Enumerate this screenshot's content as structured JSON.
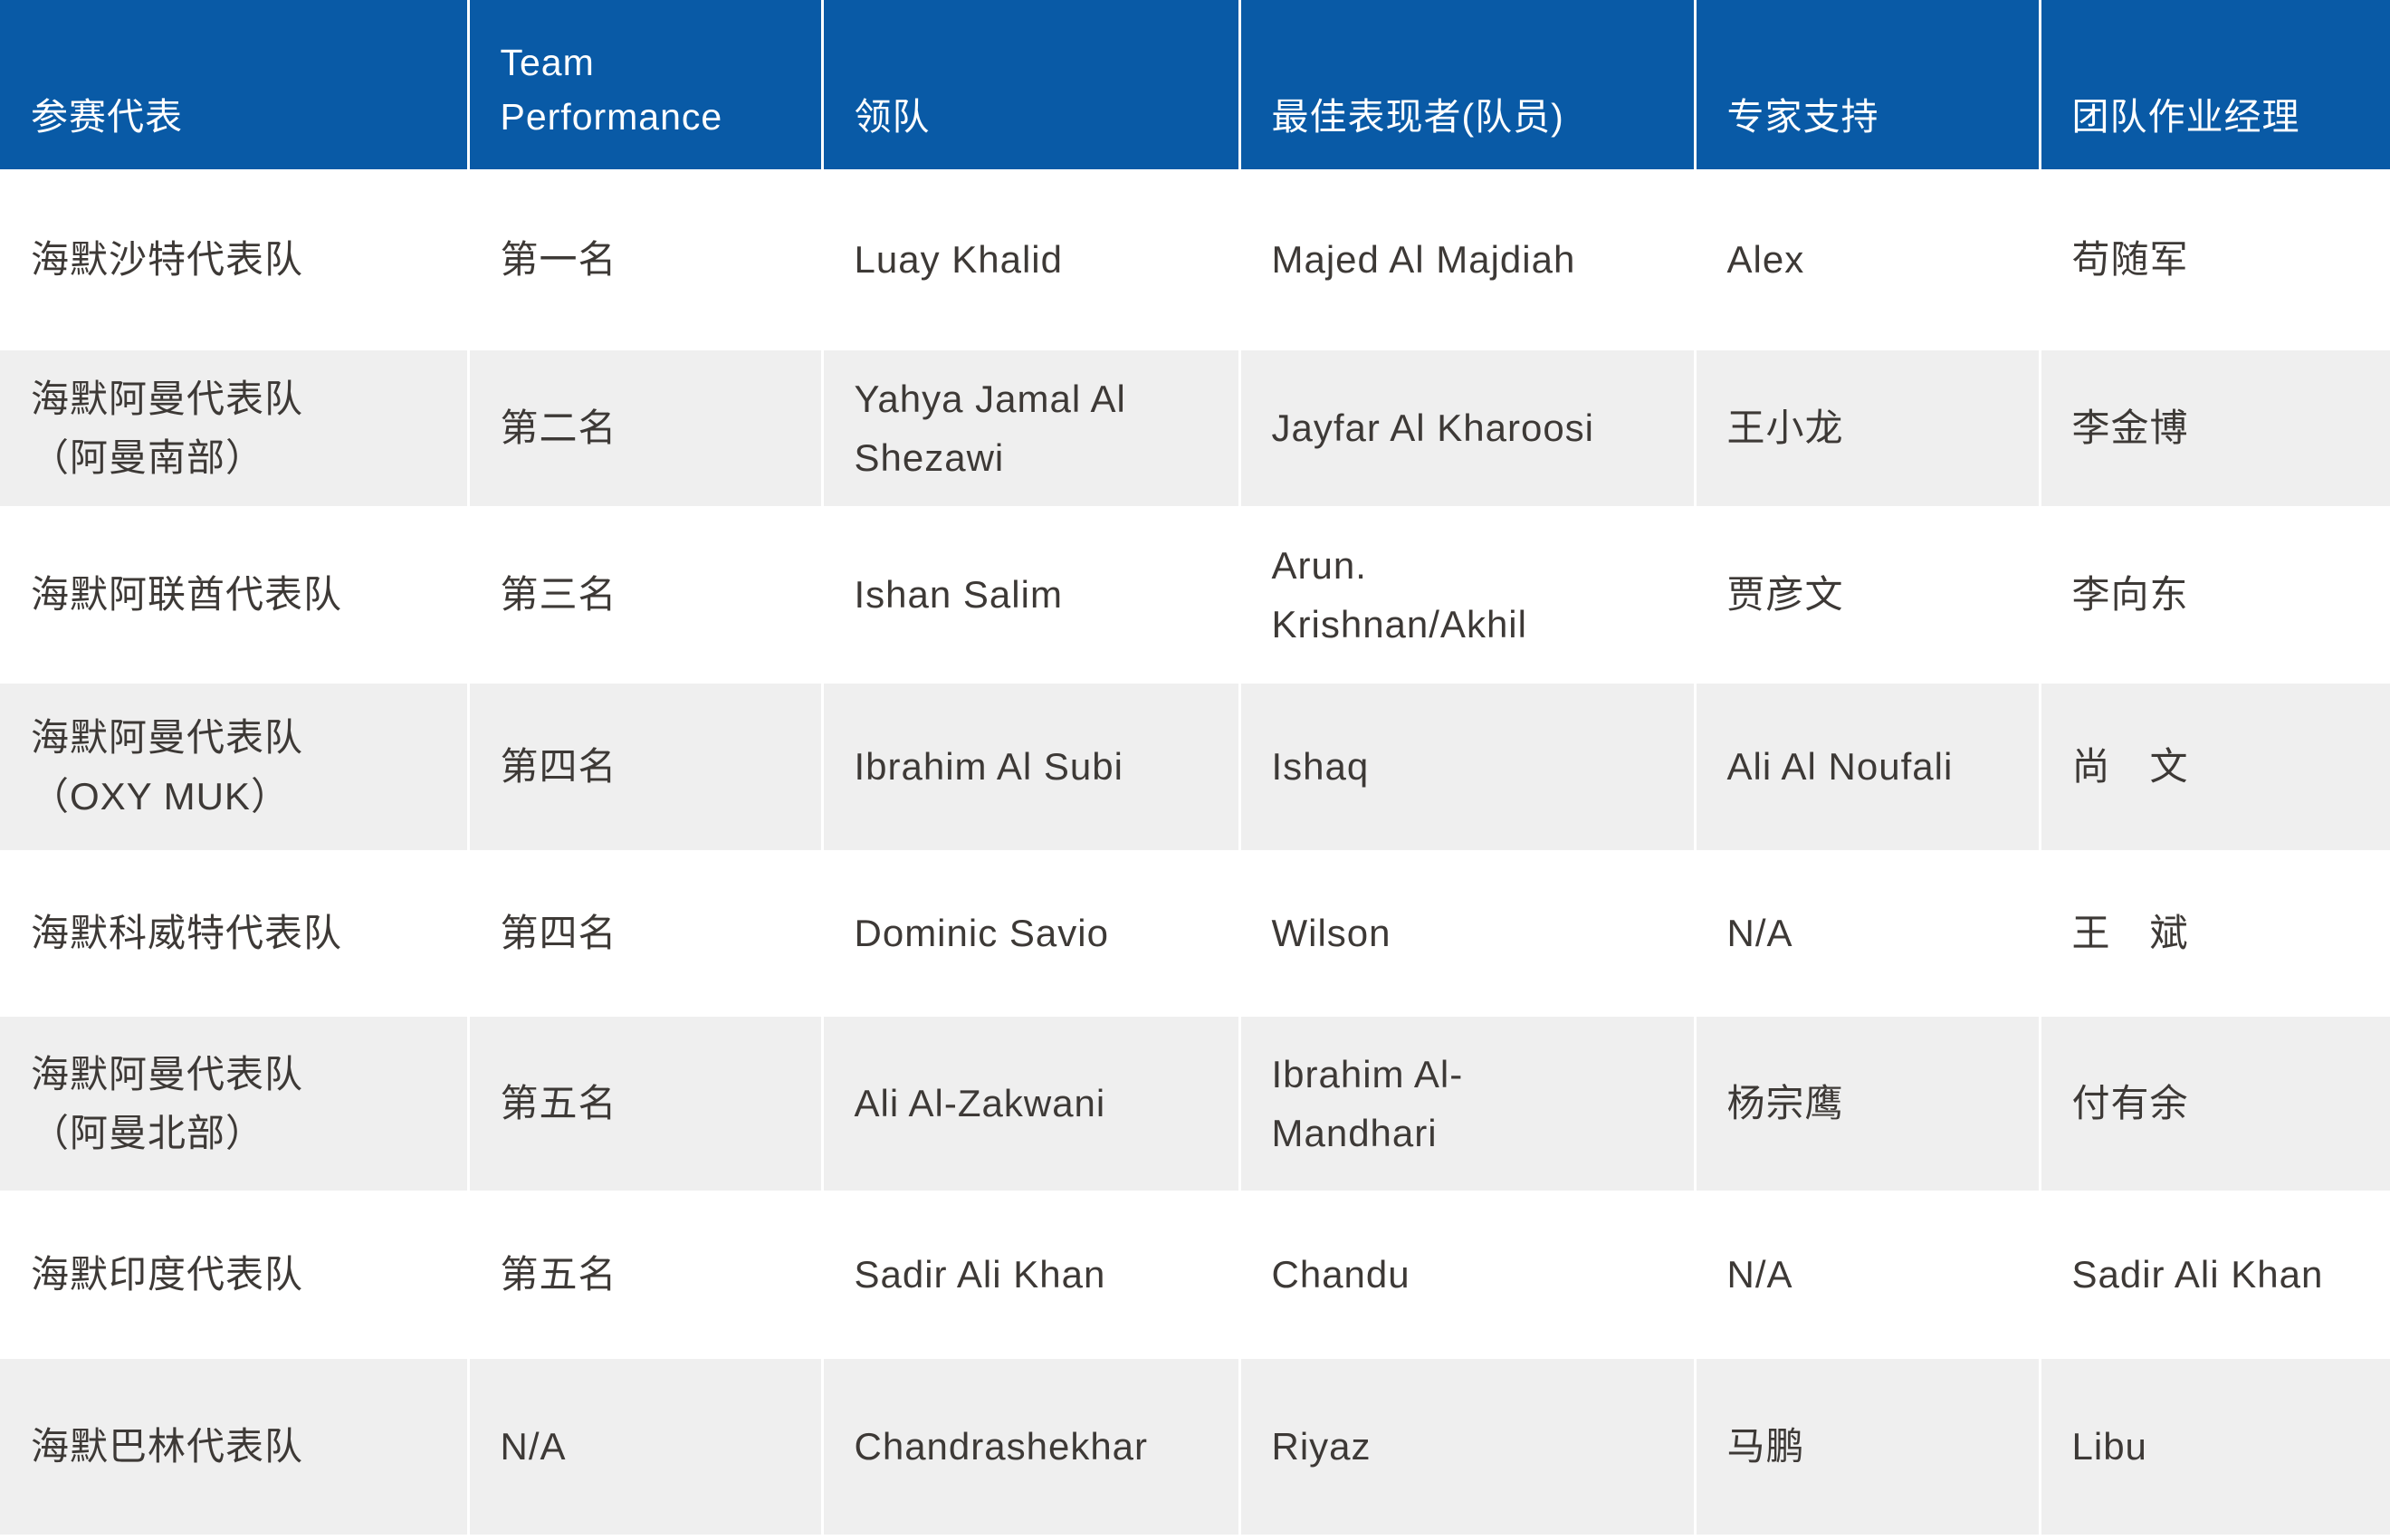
{
  "table": {
    "colors": {
      "header_bg": "#095aa6",
      "header_text": "#ffffff",
      "alt_row_bg": "#efefef",
      "body_text": "#3d3936"
    },
    "columns": [
      {
        "key": "team",
        "label": "参赛代表"
      },
      {
        "key": "performance",
        "label": "Team\nPerformance"
      },
      {
        "key": "leader",
        "label": "领队"
      },
      {
        "key": "best_performer",
        "label": "最佳表现者(队员)"
      },
      {
        "key": "expert_support",
        "label": "专家支持"
      },
      {
        "key": "operations_manager",
        "label": "团队作业经理"
      }
    ],
    "rows": [
      [
        "海默沙特代表队",
        "第一名",
        "Luay Khalid",
        "Majed Al Majdiah",
        "Alex",
        "苟随军"
      ],
      [
        "海默阿曼代表队\n（阿曼南部）",
        "第二名",
        "Yahya Jamal Al\nShezawi",
        "Jayfar Al Kharoosi",
        "王小龙",
        "李金博"
      ],
      [
        "海默阿联酋代表队",
        "第三名",
        "Ishan Salim",
        "Arun.\nKrishnan/Akhil",
        "贾彦文",
        "李向东"
      ],
      [
        "海默阿曼代表队\n（OXY MUK）",
        "第四名",
        "Ibrahim Al Subi",
        "Ishaq",
        "Ali Al Noufali",
        "尚　文"
      ],
      [
        "海默科威特代表队",
        "第四名",
        "Dominic Savio",
        "Wilson",
        "N/A",
        "王　斌"
      ],
      [
        "海默阿曼代表队\n（阿曼北部）",
        "第五名",
        "Ali Al-Zakwani",
        "Ibrahim Al-\nMandhari",
        "杨宗鹰",
        "付有余"
      ],
      [
        "海默印度代表队",
        "第五名",
        "Sadir Ali Khan",
        "Chandu",
        "N/A",
        "Sadir Ali Khan"
      ],
      [
        "海默巴林代表队",
        "N/A",
        "Chandrashekhar",
        "Riyaz",
        "马鹏",
        "Libu"
      ]
    ]
  }
}
